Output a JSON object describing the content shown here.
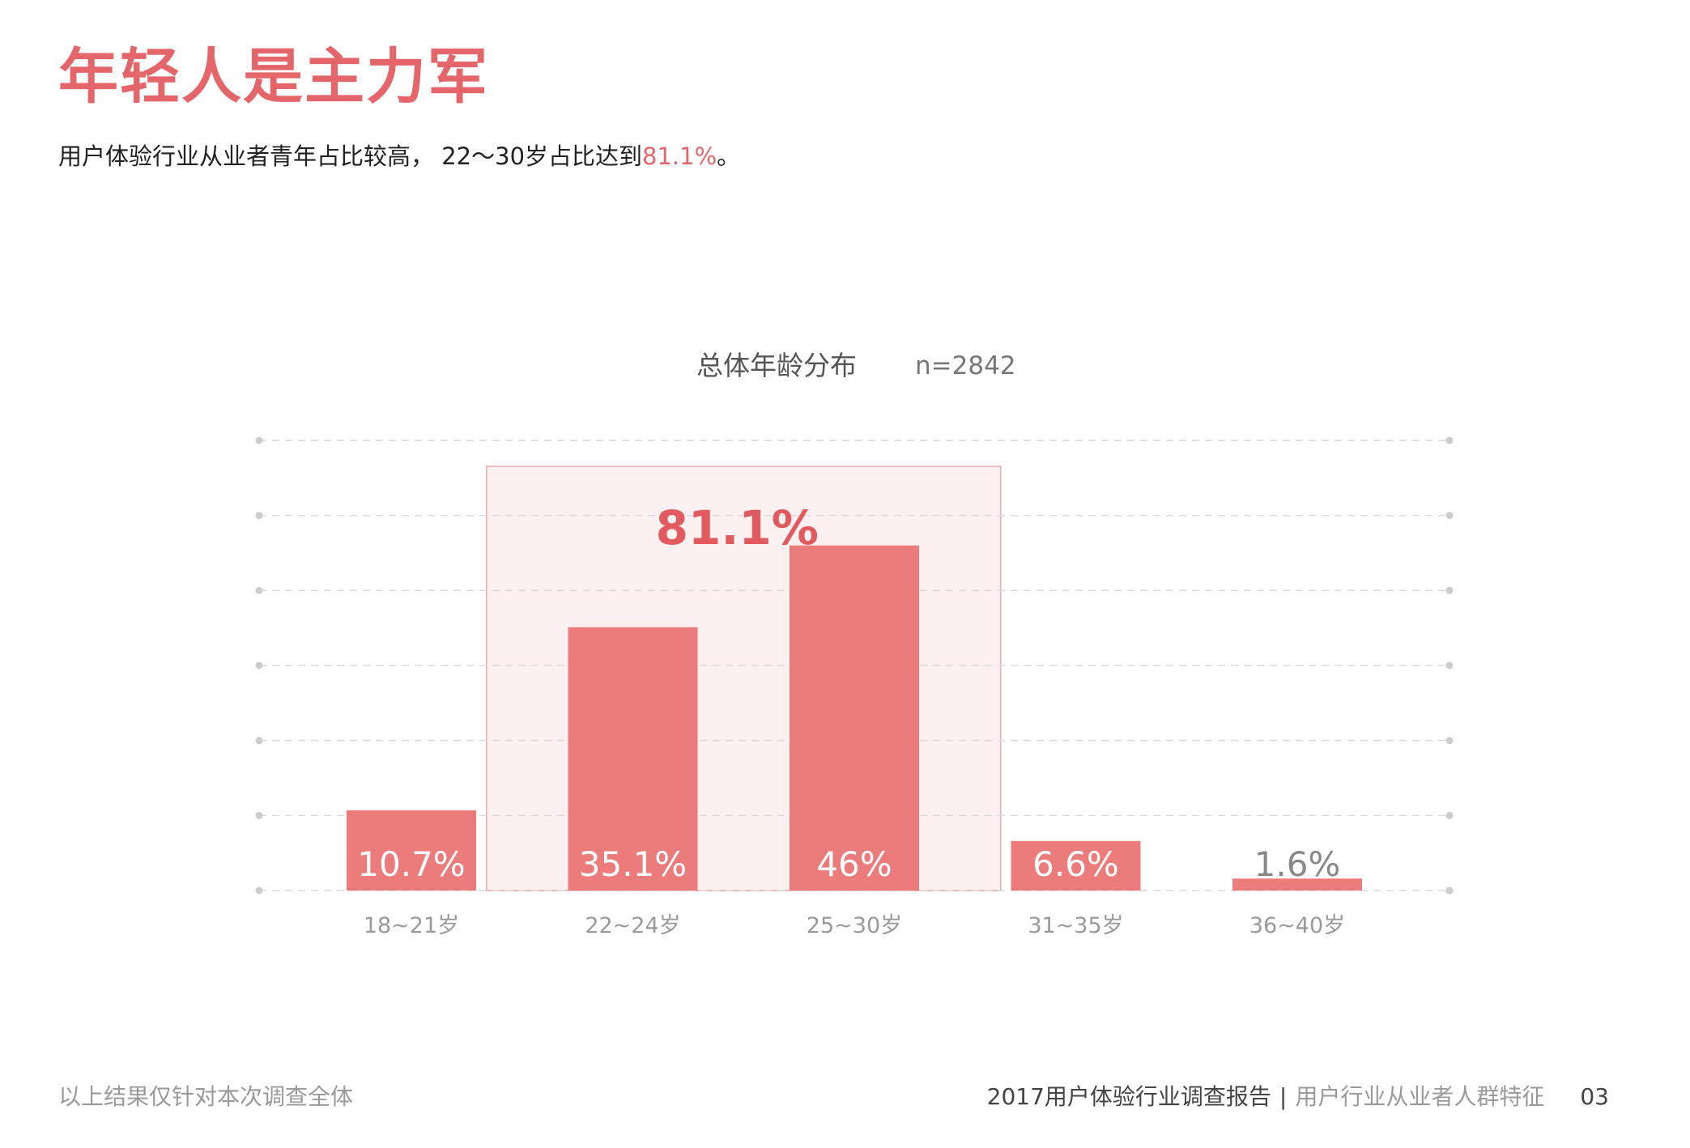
{
  "header": {
    "title": "年轻人是主力军",
    "subtitle_prefix": "用户体验行业从业者青年占比较高， 22～30岁占比达到",
    "subtitle_highlight": "81.1%",
    "subtitle_suffix": "。"
  },
  "chart_data": {
    "type": "bar",
    "title": "总体年龄分布",
    "sample_size": "n=2842",
    "categories": [
      "18~21岁",
      "22~24岁",
      "25~30岁",
      "31~35岁",
      "36~40岁"
    ],
    "values": [
      10.7,
      35.1,
      46,
      6.6,
      1.6
    ],
    "value_labels": [
      "10.7%",
      "35.1%",
      "46%",
      "6.6%",
      "1.6%"
    ],
    "ylim": [
      0,
      60
    ],
    "grid": true,
    "highlight": {
      "categories": [
        "22~24岁",
        "25~30岁"
      ],
      "label": "81.1%"
    },
    "colors": {
      "bar": "#ec7c7c",
      "highlight_fill": "#fdf0f0",
      "highlight_border": "#f0a8a8",
      "highlight_label": "#e05a5f"
    }
  },
  "footer": {
    "note": "以上结果仅针对本次调查全体",
    "report": "2017用户体验行业调查报告",
    "separator": "|",
    "section": "用户行业从业者人群特征",
    "page": "03"
  }
}
